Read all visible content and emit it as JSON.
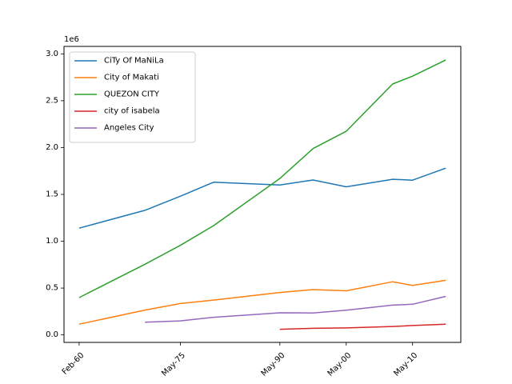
{
  "chart_data": {
    "type": "line",
    "title": "",
    "xlabel": "",
    "ylabel": "",
    "y_offset_label": "1e6",
    "grid": false,
    "legend_position": "upper-left",
    "x": [
      "Feb-60",
      "Jan-70",
      "May-75",
      "May-80",
      "May-90",
      "May-95",
      "May-00",
      "May-07",
      "May-10",
      "May-15"
    ],
    "x_ticks": [
      "Feb-60",
      "May-75",
      "May-90",
      "May-00",
      "May-10"
    ],
    "ylim": [
      -0.08,
      3.08
    ],
    "y_ticks": [
      "0.0",
      "0.5",
      "1.0",
      "1.5",
      "2.0",
      "2.5",
      "3.0"
    ],
    "series": [
      {
        "name": "CiTy Of MaNiLa",
        "color": "#1f77b4",
        "values": [
          1.14,
          1.33,
          1.48,
          1.63,
          1.6,
          1.654,
          1.581,
          1.661,
          1.652,
          1.78
        ]
      },
      {
        "name": "City of Makati",
        "color": "#ff7f0e",
        "values": [
          0.115,
          0.265,
          0.335,
          0.372,
          0.453,
          0.484,
          0.471,
          0.567,
          0.529,
          0.583
        ]
      },
      {
        "name": "QUEZON CITY",
        "color": "#2ca02c",
        "values": [
          0.398,
          0.754,
          0.956,
          1.166,
          1.67,
          1.989,
          2.174,
          2.679,
          2.762,
          2.936
        ]
      },
      {
        "name": "city of isabela",
        "color": "#d62728",
        "values": [
          null,
          null,
          null,
          null,
          0.06,
          0.07,
          0.075,
          0.09,
          0.1,
          0.115
        ]
      },
      {
        "name": "Angeles City",
        "color": "#9467bd",
        "values": [
          null,
          0.135,
          0.15,
          0.188,
          0.236,
          0.234,
          0.263,
          0.318,
          0.327,
          0.411
        ]
      }
    ]
  }
}
